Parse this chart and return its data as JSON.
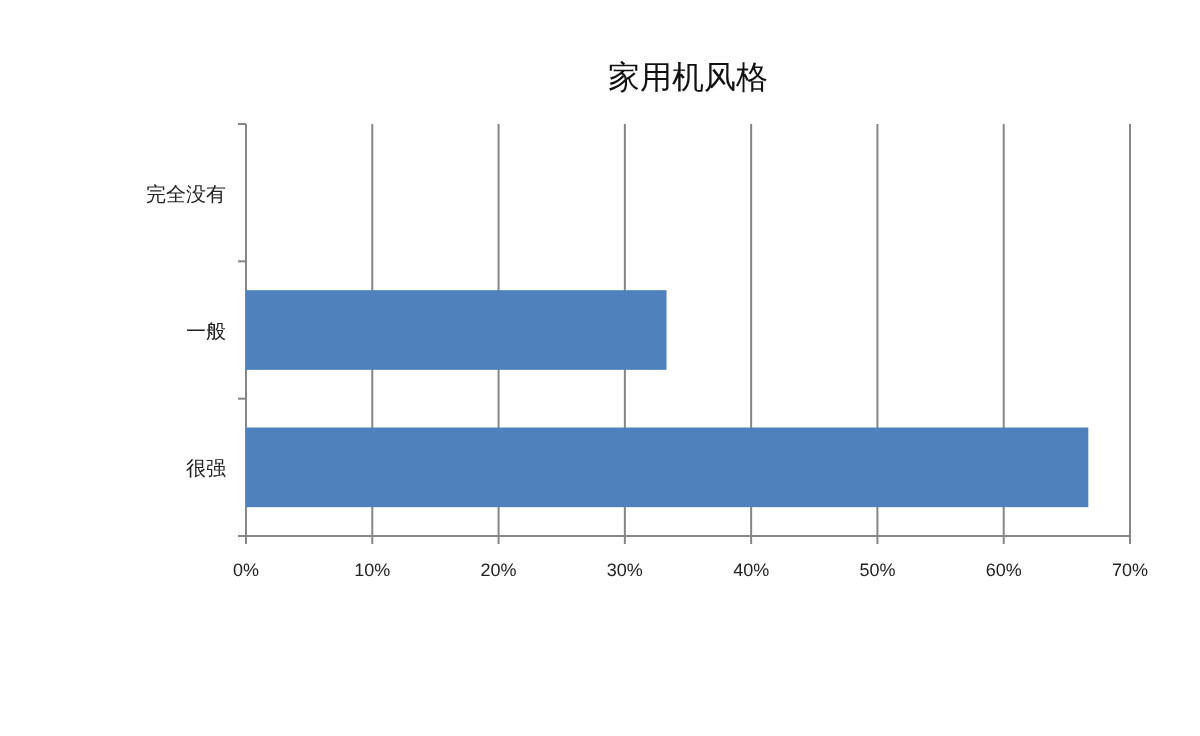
{
  "chart_data": {
    "type": "bar",
    "orientation": "horizontal",
    "title": "家用机风格",
    "categories": [
      "完全没有",
      "一般",
      "很强"
    ],
    "values": [
      0,
      33.3,
      66.7
    ],
    "color": "#4f81bd",
    "xlim": [
      0,
      70
    ],
    "xticks": [
      {
        "value": 0,
        "label": "0%"
      },
      {
        "value": 10,
        "label": "10%"
      },
      {
        "value": 20,
        "label": "20%"
      },
      {
        "value": 30,
        "label": "30%"
      },
      {
        "value": 40,
        "label": "40%"
      },
      {
        "value": 50,
        "label": "50%"
      },
      {
        "value": 60,
        "label": "60%"
      },
      {
        "value": 70,
        "label": "70%"
      }
    ],
    "grid": "x"
  }
}
